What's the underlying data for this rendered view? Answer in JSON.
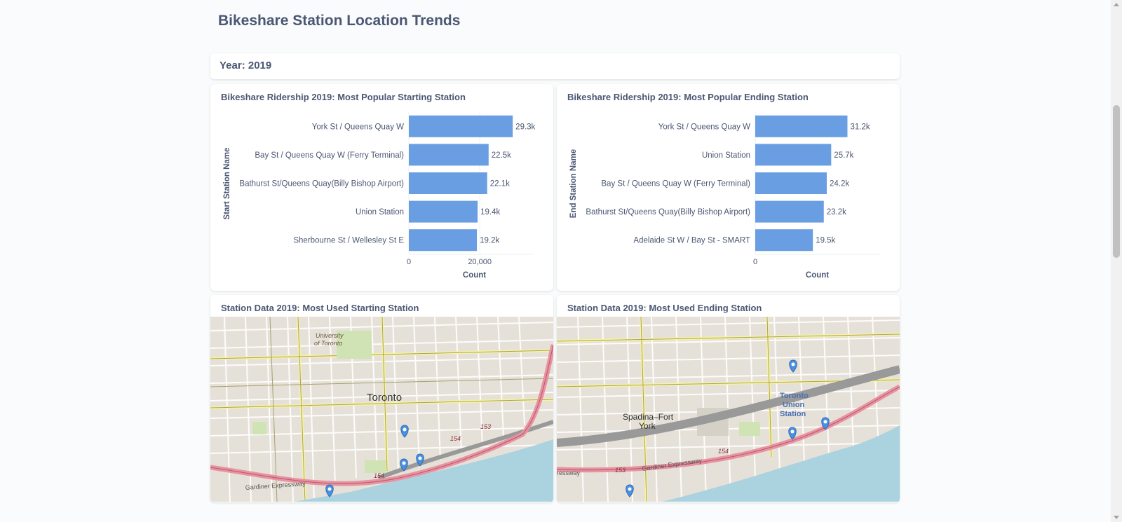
{
  "page": {
    "title": "Bikeshare Station Location Trends"
  },
  "filter": {
    "year_label": "Year: 2019"
  },
  "charts": {
    "start": {
      "title": "Bikeshare Ridership 2019: Most Popular Starting Station",
      "chart_data": {
        "type": "bar",
        "orientation": "horizontal",
        "categories": [
          "York St / Queens Quay W",
          "Bay St / Queens Quay W (Ferry Terminal)",
          "Bathurst St/Queens Quay(Billy Bishop Airport)",
          "Union Station",
          "Sherbourne St / Wellesley St E"
        ],
        "values": [
          29300,
          22500,
          22100,
          19400,
          19200
        ],
        "data_labels": [
          "29.3k",
          "22.5k",
          "22.1k",
          "19.4k",
          "19.2k"
        ],
        "xlabel": "Count",
        "ylabel": "Start Station Name",
        "xlim": [
          0,
          35000
        ],
        "x_ticks": [
          0,
          20000
        ],
        "x_tick_labels": [
          "0",
          "20,000"
        ],
        "color": "#6a9ee2",
        "grid": true
      }
    },
    "end": {
      "title": "Bikeshare Ridership 2019: Most Popular Ending Station",
      "chart_data": {
        "type": "bar",
        "orientation": "horizontal",
        "categories": [
          "York St / Queens Quay W",
          "Union Station",
          "Bay St / Queens Quay W (Ferry Terminal)",
          "Bathurst St/Queens Quay(Billy Bishop Airport)",
          "Adelaide St W / Bay St - SMART"
        ],
        "values": [
          31200,
          25700,
          24200,
          23200,
          19500
        ],
        "data_labels": [
          "31.2k",
          "25.7k",
          "24.2k",
          "23.2k",
          "19.5k"
        ],
        "xlabel": "Count",
        "ylabel": "End Station Name",
        "xlim": [
          0,
          42000
        ],
        "x_ticks": [
          0
        ],
        "x_tick_labels": [
          "0"
        ],
        "color": "#6a9ee2",
        "grid": false
      }
    }
  },
  "maps": {
    "start": {
      "title": "Station Data 2019: Most Used Starting Station",
      "labels": {
        "city": "Toronto",
        "university": "University",
        "university2": "of Toronto",
        "expressway": "Gardiner Expressway",
        "route1": "154",
        "route2": "153",
        "route3": "154"
      }
    },
    "end": {
      "title": "Station Data 2019: Most Used Ending Station",
      "labels": {
        "union1": "Toronto",
        "union2": "Union",
        "union3": "Station",
        "spadina1": "Spadina–Fort",
        "spadina2": "York",
        "expressway": "Gardiner Expressway",
        "route1": "154",
        "route2": "153",
        "express_short": "ressway"
      }
    }
  },
  "colors": {
    "marker": "#4a90e2",
    "water": "#aad3df",
    "expressway": "#e892a2",
    "bar": "#6a9ee2"
  }
}
